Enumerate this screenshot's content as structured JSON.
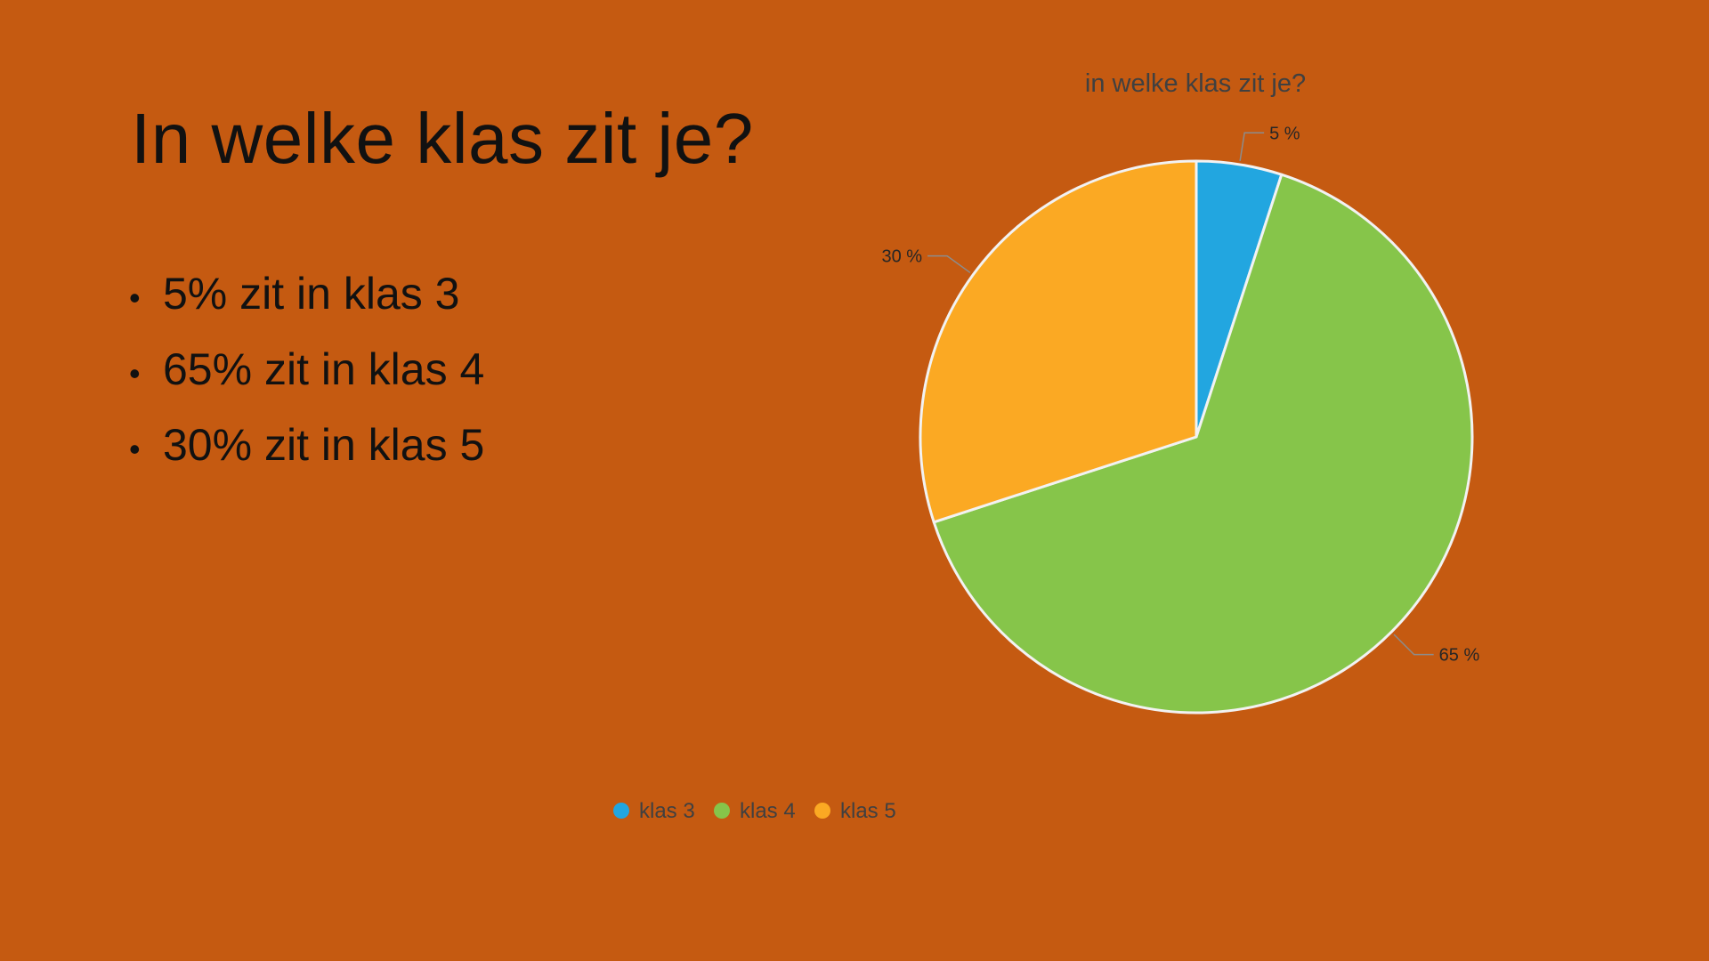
{
  "slide": {
    "title": "In welke klas zit je?",
    "bullets": [
      "5% zit in klas 3",
      "65% zit in klas 4",
      "30% zit in klas 5"
    ],
    "bullet_glyph": "•",
    "background_color": "#C55A11"
  },
  "chart_data": {
    "type": "pie",
    "title": "in welke klas zit je?",
    "categories": [
      "klas 3",
      "klas 4",
      "klas 5"
    ],
    "values": [
      5,
      65,
      30
    ],
    "data_labels": [
      "5 %",
      "65 %",
      "30 %"
    ],
    "colors": [
      "#22A6E0",
      "#86C54A",
      "#FBA923"
    ],
    "slice_border_color": "#F2F2F2",
    "start_angle": "12 o'clock, clockwise",
    "legend_position": "bottom"
  }
}
